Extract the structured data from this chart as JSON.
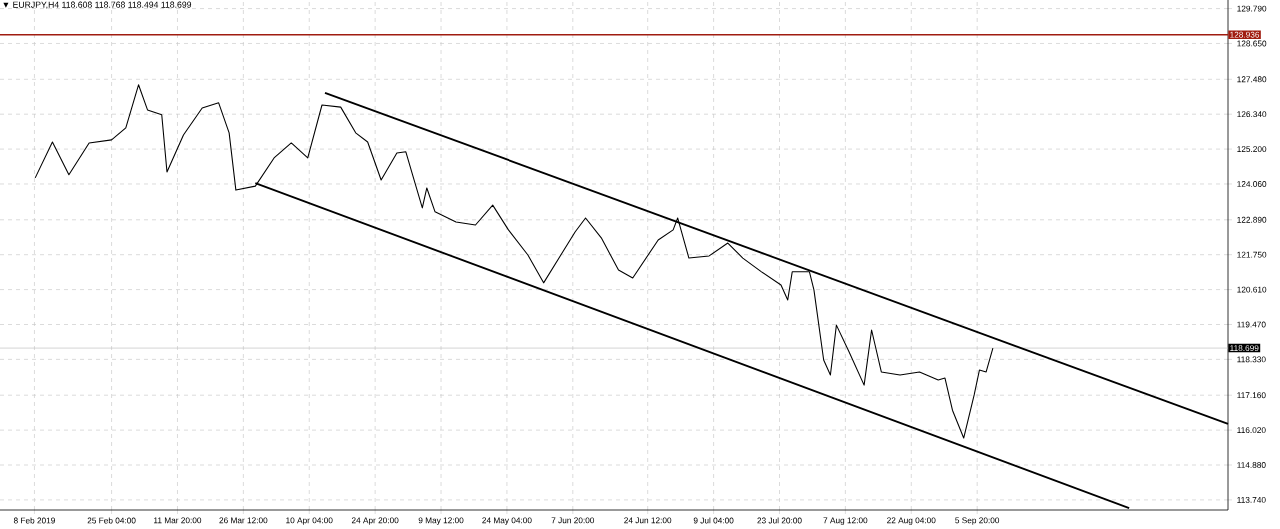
{
  "chart_data": {
    "type": "line",
    "title": "▼ EURJPY,H4  118.608 118.768 118.494 118.699",
    "xlim": [
      "2019-01-31T08:00",
      "2019-10-31T16:00"
    ],
    "ylim": [
      113.41,
      130.07
    ],
    "xticks": [
      {
        "value": "2019-02-08",
        "label": "8 Feb 2019"
      },
      {
        "value": "2019-02-25T04:00",
        "label": "25 Feb 04:00"
      },
      {
        "value": "2019-03-11T20:00",
        "label": "11 Mar 20:00"
      },
      {
        "value": "2019-03-26T12:00",
        "label": "26 Mar 12:00"
      },
      {
        "value": "2019-04-10T04:00",
        "label": "10 Apr 04:00"
      },
      {
        "value": "2019-04-24T20:00",
        "label": "24 Apr 20:00"
      },
      {
        "value": "2019-05-09T12:00",
        "label": "9 May 12:00"
      },
      {
        "value": "2019-05-24T04:00",
        "label": "24 May 04:00"
      },
      {
        "value": "2019-06-07T20:00",
        "label": "7 Jun 20:00"
      },
      {
        "value": "2019-06-24T12:00",
        "label": "24 Jun 12:00"
      },
      {
        "value": "2019-07-09T04:00",
        "label": "9 Jul 04:00"
      },
      {
        "value": "2019-07-23T20:00",
        "label": "23 Jul 20:00"
      },
      {
        "value": "2019-08-07T12:00",
        "label": "7 Aug 12:00"
      },
      {
        "value": "2019-08-22T04:00",
        "label": "22 Aug 04:00"
      },
      {
        "value": "2019-09-05T20:00",
        "label": "5 Sep 20:00"
      }
    ],
    "yticks": [
      {
        "value": 113.74,
        "label": "113.740"
      },
      {
        "value": 114.88,
        "label": "114.880"
      },
      {
        "value": 116.02,
        "label": "116.020"
      },
      {
        "value": 117.16,
        "label": "117.160"
      },
      {
        "value": 118.33,
        "label": "118.330"
      },
      {
        "value": 119.47,
        "label": "119.470"
      },
      {
        "value": 120.61,
        "label": "120.610"
      },
      {
        "value": 121.75,
        "label": "121.750"
      },
      {
        "value": 122.89,
        "label": "122.890"
      },
      {
        "value": 124.06,
        "label": "124.060"
      },
      {
        "value": 125.2,
        "label": "125.200"
      },
      {
        "value": 126.34,
        "label": "126.340"
      },
      {
        "value": 127.48,
        "label": "127.480"
      },
      {
        "value": 128.65,
        "label": "128.650"
      },
      {
        "value": 129.79,
        "label": "129.790"
      }
    ],
    "grid": true,
    "ref_lines": [
      {
        "axis": "y",
        "value": 128.936,
        "label": "128.936",
        "color": "#a01c10"
      },
      {
        "axis": "y",
        "value": 118.699,
        "label": "118.699",
        "color": "#c0c0c0"
      }
    ],
    "series": [
      {
        "color": "#000000",
        "x": [
          "2019-02-08T04:00",
          "2019-02-12T00:00",
          "2019-02-15T16:00",
          "2019-02-20T04:00",
          "2019-02-25T04:00",
          "2019-02-28T08:00",
          "2019-03-03T04:00",
          "2019-03-05T04:00",
          "2019-03-08T08:00",
          "2019-03-09T12:00",
          "2019-03-13T04:00",
          "2019-03-17T08:00",
          "2019-03-21T00:00",
          "2019-03-23T08:00",
          "2019-03-24T20:00",
          "2019-03-29T04:00",
          "2019-04-02T08:00",
          "2019-04-06T04:00",
          "2019-04-09T20:00",
          "2019-04-13T00:00",
          "2019-04-17T04:00",
          "2019-04-20T12:00",
          "2019-04-23T04:00",
          "2019-04-26T04:00",
          "2019-04-29T16:00",
          "2019-05-01T16:00",
          "2019-05-03T04:00",
          "2019-05-05T08:00",
          "2019-05-06T08:00",
          "2019-05-08T04:00",
          "2019-05-12T20:00",
          "2019-05-17T04:00",
          "2019-05-21T00:00",
          "2019-05-24T12:00",
          "2019-05-28T20:00",
          "2019-06-01T08:00",
          "2019-06-05T04:00",
          "2019-06-08T08:00",
          "2019-06-10T16:00",
          "2019-06-14T04:00",
          "2019-06-18T00:00",
          "2019-06-21T04:00",
          "2019-06-26T20:00",
          "2019-06-30T04:00",
          "2019-07-01T04:00",
          "2019-07-03T16:00",
          "2019-07-08T04:00",
          "2019-07-12T08:00",
          "2019-07-15T16:00",
          "2019-07-19T20:00",
          "2019-07-24T04:00",
          "2019-07-25T16:00",
          "2019-07-26T16:00",
          "2019-07-30T12:00",
          "2019-07-31T12:00",
          "2019-08-02T16:00",
          "2019-08-04T04:00",
          "2019-08-05T12:00",
          "2019-08-08T08:00",
          "2019-08-11T16:00",
          "2019-08-13T08:00",
          "2019-08-15T12:00",
          "2019-08-19T16:00",
          "2019-08-24T00:00",
          "2019-08-28T04:00",
          "2019-08-29T16:00",
          "2019-08-31T08:00",
          "2019-09-02T20:00",
          "2019-09-05T04:00",
          "2019-09-06T08:00",
          "2019-09-07T20:00",
          "2019-09-09T08:00"
        ],
        "values": [
          124.26,
          125.43,
          124.36,
          125.4,
          125.5,
          125.89,
          127.3,
          126.48,
          126.32,
          124.45,
          125.66,
          126.54,
          126.71,
          125.73,
          123.86,
          123.99,
          124.91,
          125.4,
          124.91,
          126.64,
          126.57,
          125.73,
          125.43,
          124.19,
          125.07,
          125.11,
          124.36,
          123.28,
          123.93,
          123.15,
          122.82,
          122.72,
          123.37,
          122.56,
          121.74,
          120.83,
          121.74,
          122.49,
          122.95,
          122.3,
          121.25,
          120.99,
          122.23,
          122.56,
          122.95,
          121.64,
          121.71,
          122.13,
          121.64,
          121.19,
          120.76,
          120.27,
          121.19,
          121.19,
          120.6,
          118.31,
          117.82,
          119.45,
          118.57,
          117.49,
          119.29,
          117.92,
          117.82,
          117.92,
          117.66,
          117.72,
          116.67,
          115.76,
          117.17,
          117.98,
          117.92,
          118.7
        ]
      },
      {
        "color": "#000000",
        "x": [
          "2019-04-13T16:00",
          "2019-10-31T16:00"
        ],
        "values": [
          127.04,
          116.22
        ]
      },
      {
        "color": "#000000",
        "x": [
          "2019-03-29T04:00",
          "2019-10-09T16:00"
        ],
        "values": [
          124.09,
          113.47
        ]
      }
    ]
  }
}
